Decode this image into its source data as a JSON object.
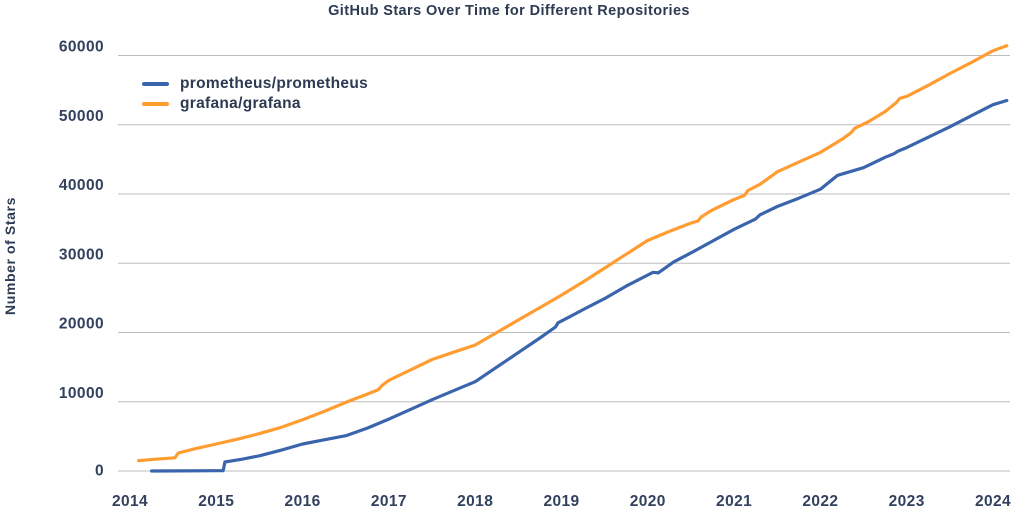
{
  "chart_data": {
    "type": "line",
    "title": "GitHub Stars Over Time for Different Repositories",
    "xlabel": "",
    "ylabel": "Number of Stars",
    "x_ticks": [
      2014,
      2015,
      2016,
      2017,
      2018,
      2019,
      2020,
      2021,
      2022,
      2023,
      2024
    ],
    "y_ticks": [
      0,
      10000,
      20000,
      30000,
      40000,
      50000,
      60000
    ],
    "xlim": [
      2013.86,
      2024.25
    ],
    "ylim": [
      0,
      60000
    ],
    "grid": "horizontal-only",
    "legend_position": "top-left-inside",
    "colors": {
      "title_text": "#2c3a52",
      "tick_text": "#32415e",
      "gridline": "#bdbdbd",
      "background": "#ffffff"
    },
    "series": [
      {
        "name": "prometheus/prometheus",
        "color": "#3a65ad",
        "points": [
          [
            2014.25,
            0
          ],
          [
            2014.6,
            15
          ],
          [
            2015.0,
            40
          ],
          [
            2015.08,
            60
          ],
          [
            2015.1,
            1300
          ],
          [
            2015.3,
            1700
          ],
          [
            2015.5,
            2200
          ],
          [
            2015.75,
            3000
          ],
          [
            2016.0,
            3900
          ],
          [
            2016.25,
            4500
          ],
          [
            2016.5,
            5100
          ],
          [
            2016.75,
            6200
          ],
          [
            2017.0,
            7500
          ],
          [
            2017.25,
            8900
          ],
          [
            2017.5,
            10300
          ],
          [
            2017.75,
            11600
          ],
          [
            2018.0,
            12900
          ],
          [
            2018.25,
            15000
          ],
          [
            2018.5,
            17100
          ],
          [
            2018.75,
            19200
          ],
          [
            2018.93,
            20800
          ],
          [
            2018.96,
            21400
          ],
          [
            2019.1,
            22300
          ],
          [
            2019.25,
            23300
          ],
          [
            2019.5,
            24900
          ],
          [
            2019.75,
            26700
          ],
          [
            2020.0,
            28300
          ],
          [
            2020.06,
            28700
          ],
          [
            2020.12,
            28600
          ],
          [
            2020.3,
            30200
          ],
          [
            2020.5,
            31500
          ],
          [
            2020.75,
            33200
          ],
          [
            2021.0,
            34900
          ],
          [
            2021.25,
            36400
          ],
          [
            2021.3,
            37000
          ],
          [
            2021.5,
            38200
          ],
          [
            2021.75,
            39400
          ],
          [
            2022.0,
            40700
          ],
          [
            2022.15,
            42200
          ],
          [
            2022.2,
            42700
          ],
          [
            2022.5,
            43800
          ],
          [
            2022.75,
            45300
          ],
          [
            2022.85,
            45800
          ],
          [
            2022.9,
            46200
          ],
          [
            2023.0,
            46700
          ],
          [
            2023.25,
            48200
          ],
          [
            2023.5,
            49700
          ],
          [
            2023.75,
            51300
          ],
          [
            2024.0,
            52900
          ],
          [
            2024.16,
            53500
          ]
        ]
      },
      {
        "name": "grafana/grafana",
        "color": "#ff9d32",
        "points": [
          [
            2014.1,
            1500
          ],
          [
            2014.3,
            1700
          ],
          [
            2014.52,
            1900
          ],
          [
            2014.56,
            2600
          ],
          [
            2014.75,
            3200
          ],
          [
            2015.0,
            3900
          ],
          [
            2015.25,
            4600
          ],
          [
            2015.5,
            5400
          ],
          [
            2015.75,
            6300
          ],
          [
            2016.0,
            7400
          ],
          [
            2016.25,
            8600
          ],
          [
            2016.5,
            9900
          ],
          [
            2016.6,
            10400
          ],
          [
            2016.75,
            11100
          ],
          [
            2016.88,
            11750
          ],
          [
            2016.92,
            12350
          ],
          [
            2017.0,
            13100
          ],
          [
            2017.25,
            14600
          ],
          [
            2017.5,
            16100
          ],
          [
            2017.75,
            17150
          ],
          [
            2018.0,
            18200
          ],
          [
            2018.25,
            20000
          ],
          [
            2018.5,
            21800
          ],
          [
            2018.75,
            23600
          ],
          [
            2019.0,
            25400
          ],
          [
            2019.25,
            27300
          ],
          [
            2019.5,
            29300
          ],
          [
            2019.75,
            31300
          ],
          [
            2020.0,
            33300
          ],
          [
            2020.25,
            34600
          ],
          [
            2020.5,
            35800
          ],
          [
            2020.58,
            36100
          ],
          [
            2020.62,
            36700
          ],
          [
            2020.75,
            37700
          ],
          [
            2021.0,
            39200
          ],
          [
            2021.12,
            39800
          ],
          [
            2021.16,
            40500
          ],
          [
            2021.3,
            41400
          ],
          [
            2021.5,
            43200
          ],
          [
            2021.75,
            44600
          ],
          [
            2022.0,
            46000
          ],
          [
            2022.25,
            47900
          ],
          [
            2022.35,
            48800
          ],
          [
            2022.4,
            49500
          ],
          [
            2022.55,
            50400
          ],
          [
            2022.75,
            51900
          ],
          [
            2022.88,
            53200
          ],
          [
            2022.92,
            53800
          ],
          [
            2023.0,
            54100
          ],
          [
            2023.25,
            55700
          ],
          [
            2023.5,
            57400
          ],
          [
            2023.75,
            59000
          ],
          [
            2024.0,
            60700
          ],
          [
            2024.16,
            61400
          ]
        ]
      }
    ]
  }
}
